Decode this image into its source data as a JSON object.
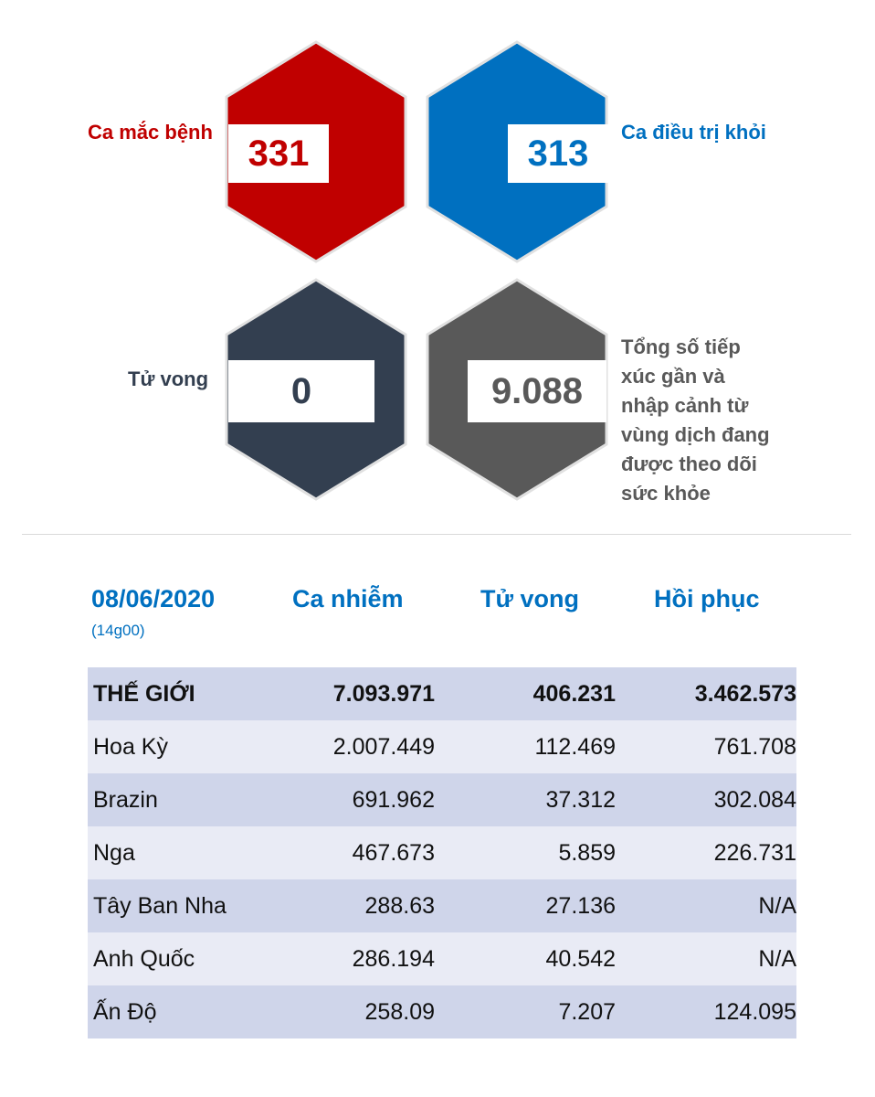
{
  "cards": [
    {
      "key": "cases",
      "label": "Ca mắc bệnh",
      "value": "331",
      "color": "#c00000"
    },
    {
      "key": "recovered",
      "label": "Ca điều trị khỏi",
      "value": "313",
      "color": "#0070c0"
    },
    {
      "key": "deaths",
      "label": "Tử vong",
      "value": "0",
      "color": "#333f50"
    },
    {
      "key": "monitored",
      "label": "Tổng số tiếp xúc gần và nhập cảnh từ vùng dịch đang được theo dõi sức khỏe",
      "value": "9.088",
      "color": "#595959"
    }
  ],
  "monitored_label_lines": [
    "Tổng số tiếp",
    "xúc gần và",
    "nhập cảnh từ",
    "vùng dịch đang",
    "được theo dõi",
    "sức khỏe"
  ],
  "table": {
    "date": "08/06/2020",
    "time": "(14g00)",
    "headers": [
      "Ca nhiễm",
      "Tử vong",
      "Hồi phục"
    ],
    "rows": [
      [
        "THẾ GIỚI",
        "7.093.971",
        "406.231",
        "3.462.573"
      ],
      [
        "Hoa Kỳ",
        "2.007.449",
        "112.469",
        "761.708"
      ],
      [
        "Brazin",
        "691.962",
        "37.312",
        "302.084"
      ],
      [
        "Nga",
        "467.673",
        "5.859",
        "226.731"
      ],
      [
        "Tây Ban Nha",
        "288.63",
        "27.136",
        "N/A"
      ],
      [
        "Anh Quốc",
        "286.194",
        "40.542",
        "N/A"
      ],
      [
        "Ấn Độ",
        "258.09",
        "7.207",
        "124.095"
      ]
    ]
  }
}
